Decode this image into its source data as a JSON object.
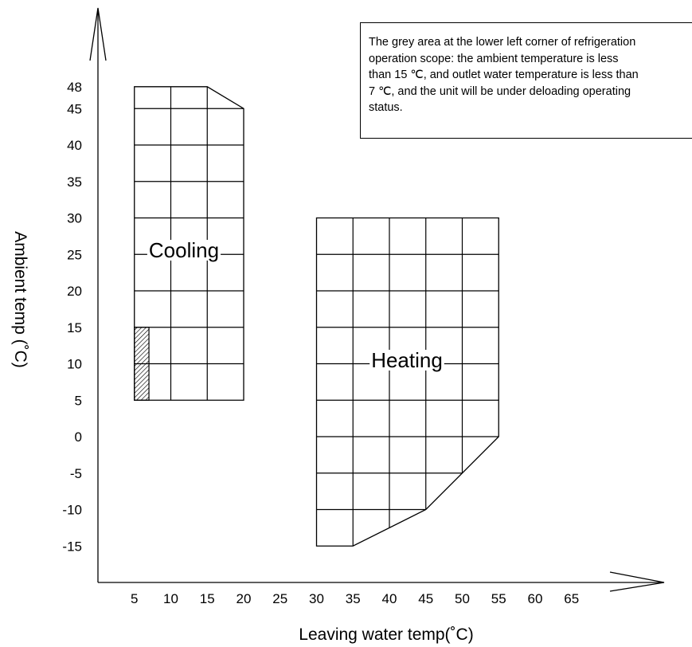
{
  "chart_data": {
    "type": "diagram",
    "xlabel": "Leaving water temp(˚C)",
    "ylabel": "Ambient temp (˚C)",
    "x_ticks": [
      5,
      10,
      15,
      20,
      25,
      30,
      35,
      40,
      45,
      50,
      55,
      60,
      65
    ],
    "y_ticks": [
      48,
      45,
      40,
      35,
      30,
      25,
      20,
      15,
      10,
      5,
      0,
      -5,
      -10,
      -15
    ],
    "regions": [
      {
        "label": "Cooling",
        "polygon": [
          [
            5,
            5
          ],
          [
            20,
            5
          ],
          [
            20,
            45
          ],
          [
            15,
            48
          ],
          [
            5,
            48
          ]
        ],
        "grid_x": [
          10,
          15
        ],
        "grid_y": [
          10,
          15,
          20,
          25,
          30,
          35,
          40,
          45
        ],
        "hatched_area": {
          "x": [
            5,
            7
          ],
          "y": [
            5,
            15
          ]
        }
      },
      {
        "label": "Heating",
        "polygon": [
          [
            30,
            -15
          ],
          [
            35,
            -15
          ],
          [
            45,
            -10
          ],
          [
            55,
            0
          ],
          [
            55,
            30
          ],
          [
            30,
            30
          ]
        ],
        "grid_x": [
          35,
          40,
          45,
          50
        ],
        "grid_y": [
          -10,
          -5,
          0,
          5,
          10,
          15,
          20,
          25
        ]
      }
    ]
  },
  "note": {
    "lines": [
      "The grey area at the lower left corner of refrigeration",
      "operation scope: the ambient temperature is less",
      "than 15 ℃, and outlet water temperature is less than",
      "7 ℃, and the unit will be under deloading operating",
      "status."
    ]
  }
}
